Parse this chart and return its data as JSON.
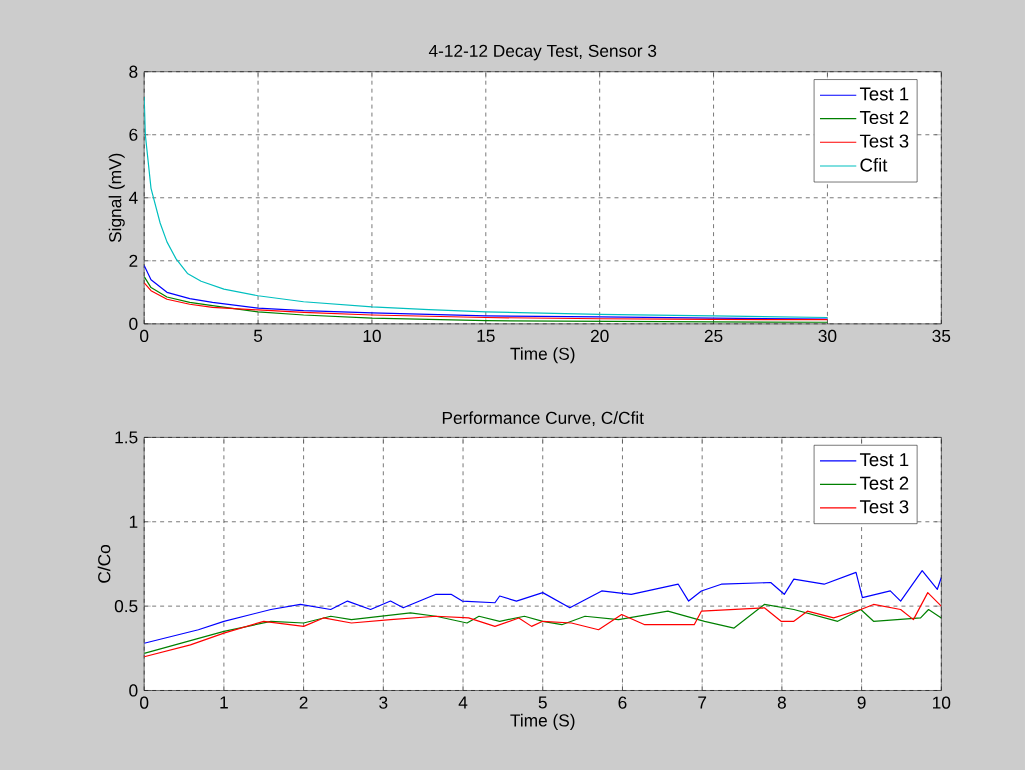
{
  "chart_data": [
    {
      "type": "line",
      "title": "4-12-12 Decay Test, Sensor 3",
      "xlabel": "Time (S)",
      "ylabel": "Signal (mV)",
      "xlim": [
        0,
        35
      ],
      "ylim": [
        0,
        8
      ],
      "xticks": [
        0,
        5,
        10,
        15,
        20,
        25,
        30,
        35
      ],
      "yticks": [
        0,
        2,
        4,
        6,
        8
      ],
      "grid": true,
      "legend": "top right",
      "series": [
        {
          "name": "Test 1",
          "color": "#0000ff",
          "x": [
            0,
            0.3,
            1,
            2,
            3,
            5,
            7,
            10,
            15,
            20,
            25,
            30
          ],
          "values": [
            1.85,
            1.4,
            1.0,
            0.8,
            0.68,
            0.5,
            0.42,
            0.35,
            0.25,
            0.22,
            0.18,
            0.15
          ]
        },
        {
          "name": "Test 2",
          "color": "#008000",
          "x": [
            0,
            0.3,
            1,
            2,
            3,
            5,
            7,
            10,
            15,
            20,
            25,
            30
          ],
          "values": [
            1.5,
            1.15,
            0.85,
            0.68,
            0.58,
            0.38,
            0.28,
            0.18,
            0.1,
            0.08,
            0.06,
            0.05
          ]
        },
        {
          "name": "Test 3",
          "color": "#ff0000",
          "x": [
            0,
            0.3,
            1,
            2,
            3,
            5,
            7,
            10,
            15,
            20,
            25,
            30
          ],
          "values": [
            1.3,
            1.05,
            0.78,
            0.62,
            0.52,
            0.44,
            0.36,
            0.28,
            0.2,
            0.16,
            0.14,
            0.13
          ]
        },
        {
          "name": "Cfit",
          "color": "#00bfbf",
          "x": [
            0,
            0.05,
            0.3,
            0.7,
            1.0,
            1.4,
            1.9,
            2.5,
            3.5,
            5,
            7,
            10,
            12.5,
            15,
            20,
            25,
            30
          ],
          "values": [
            7.2,
            6.0,
            4.3,
            3.2,
            2.6,
            2.06,
            1.6,
            1.35,
            1.1,
            0.89,
            0.7,
            0.54,
            0.45,
            0.38,
            0.3,
            0.25,
            0.2
          ]
        }
      ]
    },
    {
      "type": "line",
      "title": "Performance Curve, C/Cfit",
      "xlabel": "Time (S)",
      "ylabel": "C/Co",
      "xlim": [
        0,
        10
      ],
      "ylim": [
        0,
        1.5
      ],
      "xticks": [
        0,
        1,
        2,
        3,
        4,
        5,
        6,
        7,
        8,
        9,
        10
      ],
      "yticks": [
        0,
        0.5,
        1,
        1.5
      ],
      "grid": true,
      "legend": "top right",
      "series": [
        {
          "name": "Test 1",
          "color": "#0000ff",
          "x": [
            0,
            0.68,
            1.0,
            1.59,
            1.96,
            2.34,
            2.55,
            2.84,
            3.09,
            3.25,
            3.66,
            3.85,
            3.99,
            4.4,
            4.46,
            4.67,
            5.0,
            5.34,
            5.74,
            6.11,
            6.7,
            6.83,
            6.99,
            7.24,
            7.86,
            8.03,
            8.15,
            8.53,
            8.93,
            9.01,
            9.36,
            9.49,
            9.76,
            9.95,
            10
          ],
          "values": [
            0.28,
            0.36,
            0.41,
            0.48,
            0.51,
            0.48,
            0.53,
            0.48,
            0.53,
            0.49,
            0.57,
            0.57,
            0.53,
            0.52,
            0.56,
            0.53,
            0.58,
            0.49,
            0.59,
            0.57,
            0.63,
            0.53,
            0.59,
            0.63,
            0.64,
            0.57,
            0.66,
            0.63,
            0.7,
            0.55,
            0.59,
            0.53,
            0.71,
            0.6,
            0.67
          ]
        },
        {
          "name": "Test 2",
          "color": "#008000",
          "x": [
            0,
            1.0,
            1.59,
            2.0,
            2.34,
            2.6,
            3.34,
            3.66,
            4.05,
            4.2,
            4.46,
            4.77,
            5.0,
            5.24,
            5.53,
            5.95,
            6.57,
            7.03,
            7.4,
            7.78,
            8.15,
            8.7,
            8.99,
            9.15,
            9.74,
            9.84,
            10
          ],
          "values": [
            0.22,
            0.35,
            0.41,
            0.4,
            0.44,
            0.42,
            0.46,
            0.44,
            0.4,
            0.44,
            0.41,
            0.44,
            0.41,
            0.39,
            0.44,
            0.42,
            0.47,
            0.41,
            0.37,
            0.51,
            0.48,
            0.41,
            0.48,
            0.41,
            0.43,
            0.48,
            0.43
          ]
        },
        {
          "name": "Test 3",
          "color": "#ff0000",
          "x": [
            0,
            0.58,
            1.0,
            1.5,
            2.0,
            2.25,
            2.6,
            3.09,
            3.66,
            4.07,
            4.4,
            4.7,
            4.86,
            5.0,
            5.36,
            5.7,
            5.99,
            6.28,
            6.9,
            6.99,
            7.78,
            7.99,
            8.15,
            8.32,
            8.65,
            8.99,
            9.15,
            9.49,
            9.65,
            9.83,
            10
          ],
          "values": [
            0.2,
            0.27,
            0.34,
            0.41,
            0.38,
            0.43,
            0.4,
            0.42,
            0.44,
            0.43,
            0.38,
            0.43,
            0.38,
            0.41,
            0.4,
            0.36,
            0.45,
            0.39,
            0.39,
            0.47,
            0.49,
            0.41,
            0.41,
            0.47,
            0.43,
            0.48,
            0.51,
            0.48,
            0.42,
            0.58,
            0.5
          ]
        }
      ]
    }
  ]
}
